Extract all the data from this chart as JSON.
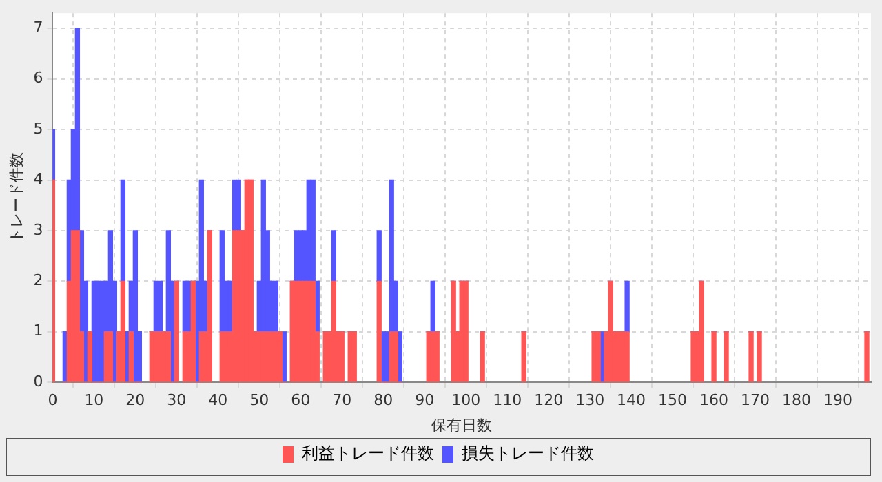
{
  "chart_data": {
    "type": "bar",
    "stacked": true,
    "xlabel": "保有日数",
    "ylabel": "トレード件数",
    "x": [
      0,
      3,
      4,
      5,
      6,
      7,
      8,
      9,
      10,
      11,
      12,
      13,
      14,
      15,
      16,
      17,
      18,
      19,
      20,
      21,
      24,
      25,
      26,
      27,
      28,
      29,
      30,
      32,
      33,
      34,
      35,
      36,
      37,
      38,
      41,
      42,
      43,
      44,
      45,
      46,
      47,
      48,
      49,
      50,
      51,
      52,
      53,
      54,
      55,
      56,
      58,
      59,
      60,
      61,
      62,
      63,
      64,
      66,
      67,
      68,
      69,
      70,
      72,
      73,
      79,
      80,
      81,
      82,
      83,
      84,
      91,
      92,
      93,
      97,
      98,
      99,
      100,
      104,
      114,
      131,
      132,
      133,
      134,
      135,
      136,
      137,
      138,
      139,
      155,
      156,
      157,
      160,
      163,
      169,
      171,
      197
    ],
    "series": [
      {
        "name": "利益トレード件数",
        "color": "#ff5555",
        "values": [
          4,
          0,
          2,
          3,
          3,
          1,
          0,
          1,
          0,
          0,
          0,
          1,
          1,
          0,
          1,
          2,
          0,
          1,
          0,
          0,
          1,
          1,
          1,
          1,
          1,
          0,
          2,
          1,
          1,
          2,
          0,
          1,
          1,
          3,
          1,
          1,
          1,
          3,
          3,
          3,
          4,
          4,
          1,
          1,
          1,
          1,
          1,
          1,
          1,
          0,
          2,
          2,
          2,
          2,
          2,
          2,
          1,
          1,
          1,
          2,
          1,
          1,
          1,
          1,
          2,
          0,
          0,
          1,
          1,
          0,
          1,
          1,
          1,
          2,
          1,
          2,
          2,
          1,
          1,
          1,
          1,
          0,
          1,
          2,
          1,
          1,
          1,
          1,
          1,
          1,
          2,
          1,
          1,
          1,
          1,
          1
        ]
      },
      {
        "name": "損失トレード件数",
        "color": "#5555ff",
        "values": [
          1,
          1,
          2,
          2,
          4,
          2,
          2,
          0,
          2,
          2,
          2,
          1,
          2,
          2,
          0,
          2,
          1,
          1,
          3,
          1,
          0,
          1,
          1,
          0,
          2,
          2,
          0,
          1,
          1,
          0,
          2,
          3,
          1,
          0,
          2,
          1,
          1,
          1,
          1,
          0,
          0,
          0,
          0,
          1,
          3,
          2,
          1,
          1,
          0,
          1,
          0,
          1,
          1,
          1,
          2,
          2,
          1,
          0,
          0,
          1,
          0,
          0,
          0,
          0,
          1,
          1,
          1,
          3,
          1,
          1,
          0,
          1,
          0,
          0,
          0,
          0,
          0,
          0,
          0,
          0,
          0,
          1,
          0,
          0,
          0,
          0,
          0,
          1,
          0,
          0,
          0,
          0,
          0,
          0,
          0,
          0
        ]
      }
    ],
    "xlim": [
      0,
      198
    ],
    "xticks": [
      0,
      10,
      20,
      30,
      40,
      50,
      60,
      70,
      80,
      90,
      100,
      110,
      120,
      130,
      140,
      150,
      160,
      170,
      180,
      190
    ],
    "ylim": [
      0,
      7.3
    ],
    "yticks": [
      0,
      1,
      2,
      3,
      4,
      5,
      6,
      7
    ],
    "grid": true,
    "legend": "bottom"
  }
}
